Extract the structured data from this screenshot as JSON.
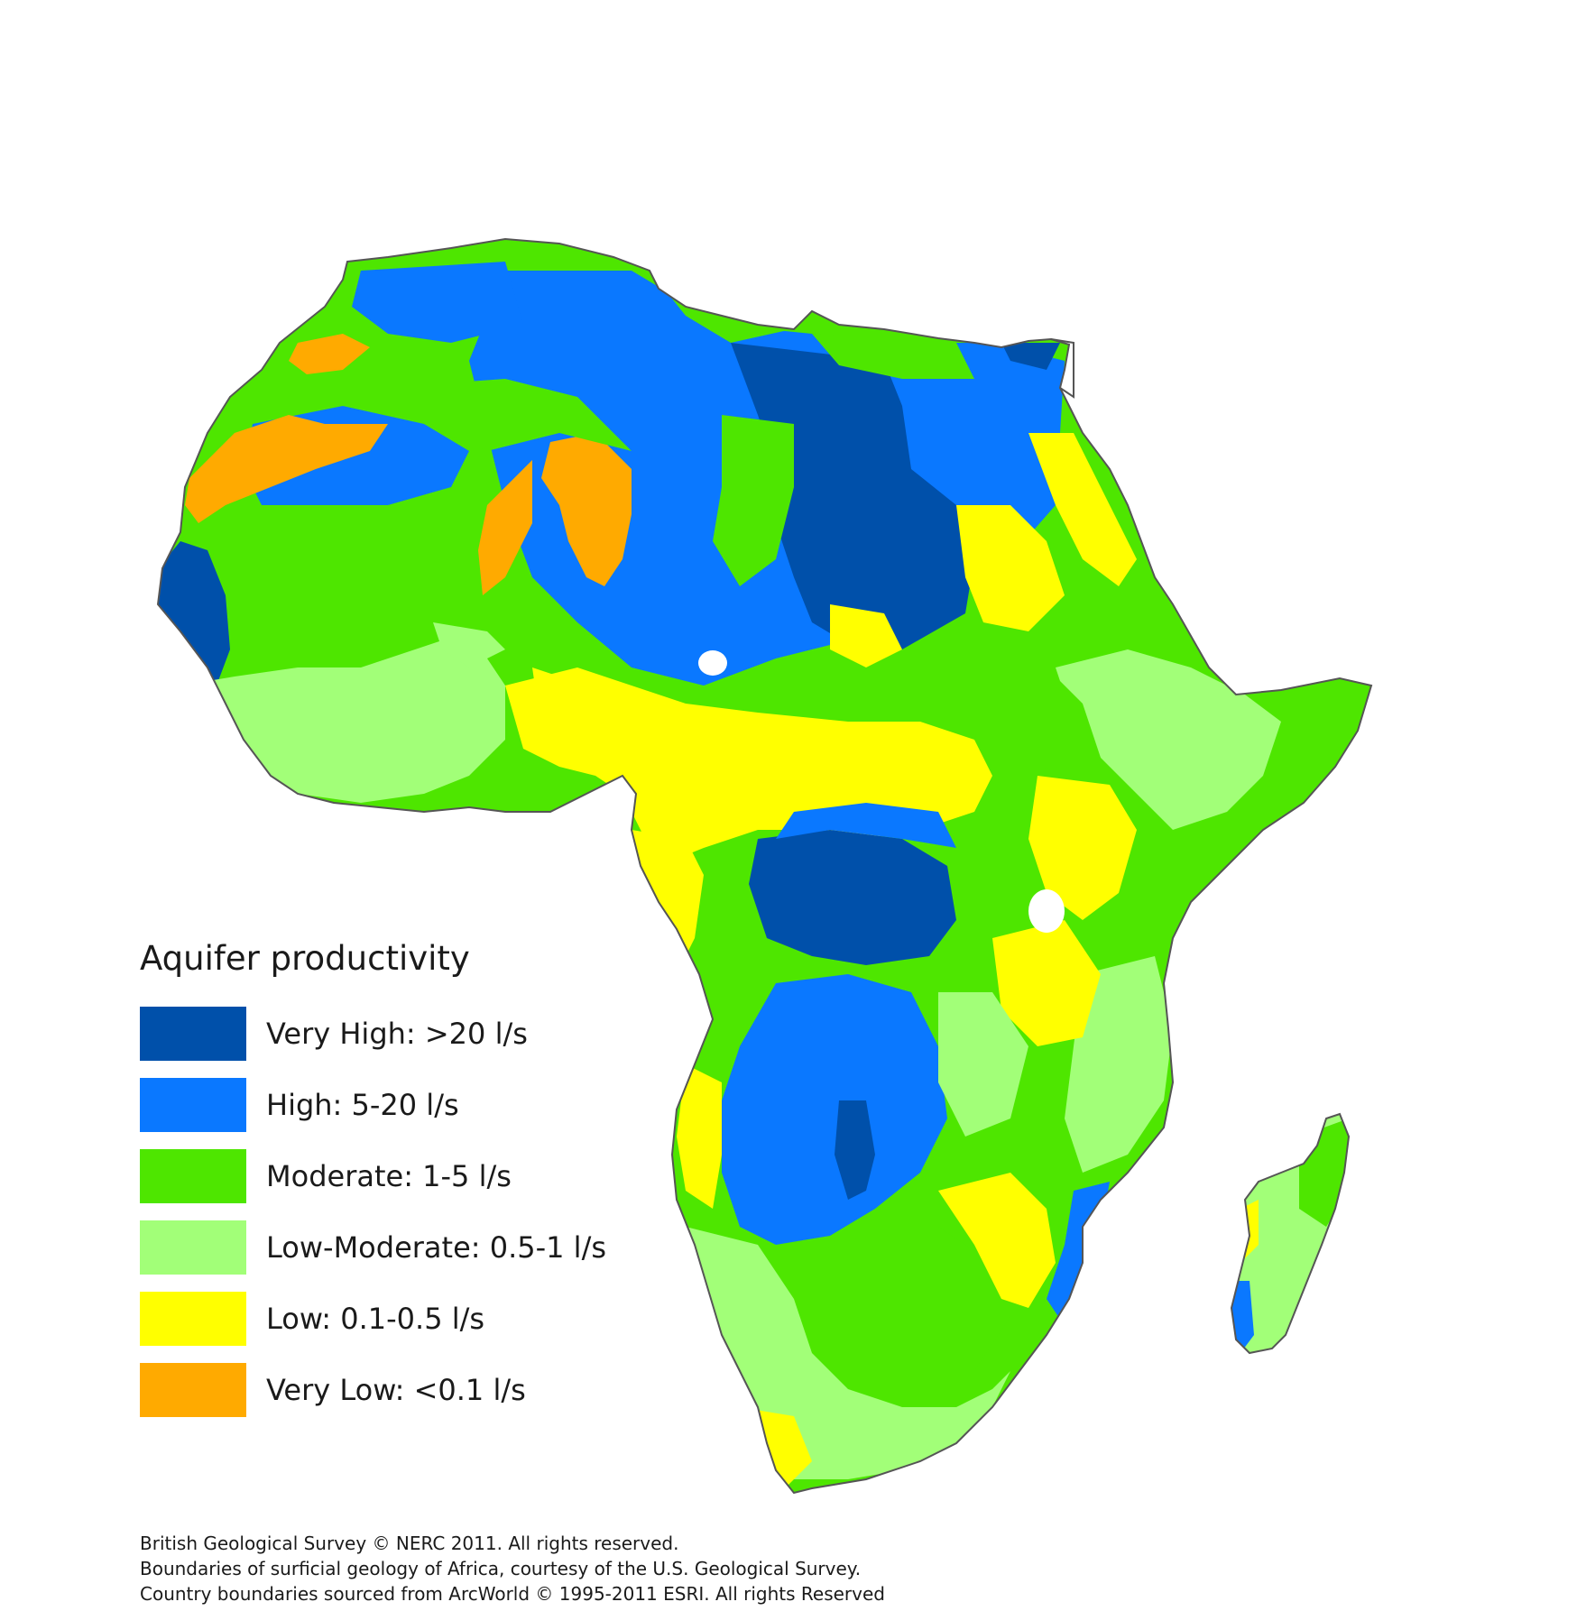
{
  "legend": {
    "title": "Aquifer productivity",
    "items": [
      {
        "label": "Very High: >20 l/s",
        "color": "#0050aa"
      },
      {
        "label": "High: 5-20 l/s",
        "color": "#0a78ff"
      },
      {
        "label": "Moderate: 1-5 l/s",
        "color": "#4ee600"
      },
      {
        "label": "Low-Moderate: 0.5-1 l/s",
        "color": "#a2ff78"
      },
      {
        "label": "Low: 0.1-0.5 l/s",
        "color": "#ffff00"
      },
      {
        "label": "Very Low: <0.1 l/s",
        "color": "#ffaa00"
      }
    ]
  },
  "credits": {
    "line1": "British Geological Survey © NERC 2011.  All rights reserved.",
    "line2": "Boundaries of surficial geology of Africa, courtesy of the U.S. Geological Survey.",
    "line3": "Country boundaries sourced from ArcWorld © 1995-2011 ESRI.  All rights Reserved"
  }
}
